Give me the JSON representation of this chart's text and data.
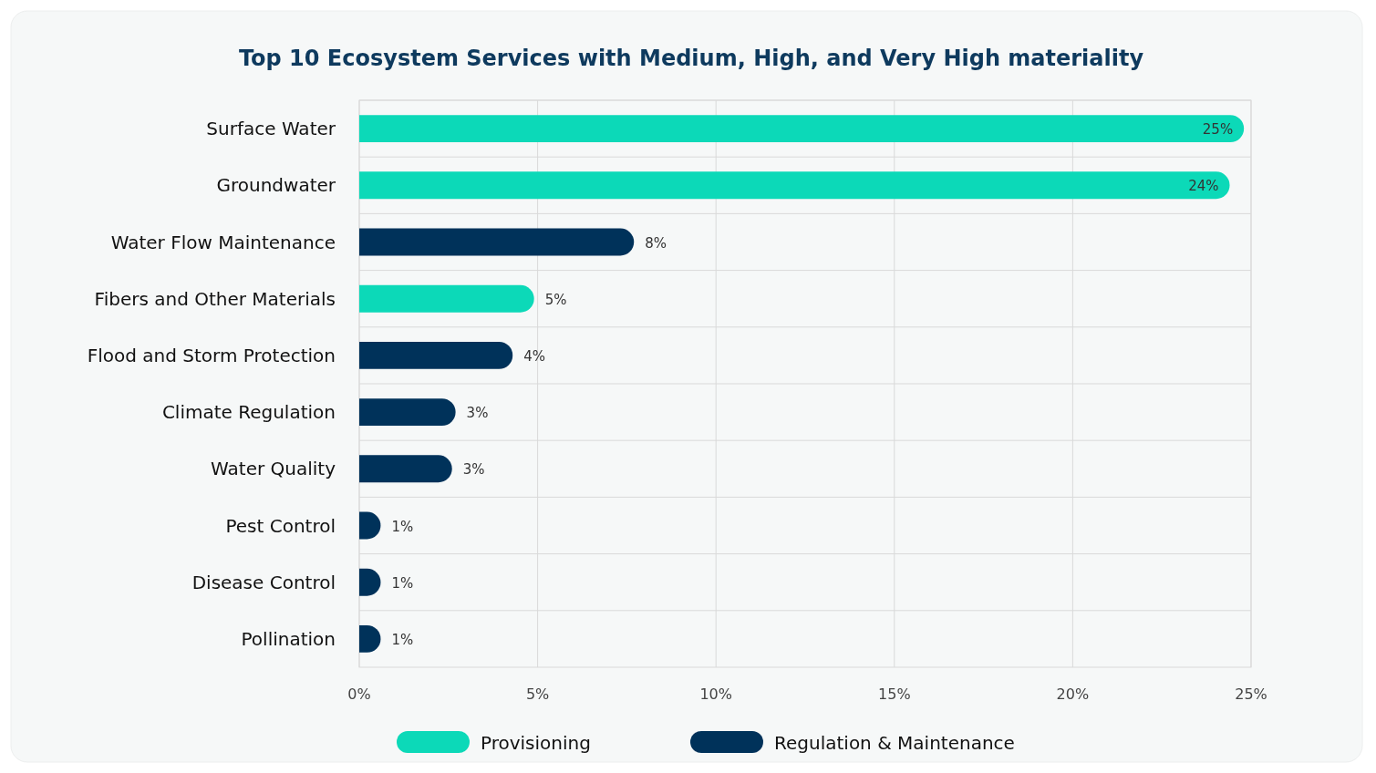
{
  "chart_data": {
    "type": "bar",
    "orientation": "horizontal",
    "title": "Top 10 Ecosystem Services with Medium, High, and Very High materiality",
    "categories": [
      "Surface Water",
      "Groundwater",
      "Water Flow Maintenance",
      "Fibers and Other Materials",
      "Flood and Storm Protection",
      "Climate Regulation",
      "Water Quality",
      "Pest Control",
      "Disease Control",
      "Pollination"
    ],
    "series": [
      {
        "name": "Provisioning",
        "color": "#0cd9b8",
        "values": [
          24.8,
          24.4,
          null,
          4.9,
          null,
          null,
          null,
          null,
          null,
          null
        ],
        "value_labels": [
          "25%",
          "24%",
          null,
          "5%",
          null,
          null,
          null,
          null,
          null,
          null
        ]
      },
      {
        "name": "Regulation & Maintenance",
        "color": "#00325a",
        "values": [
          null,
          null,
          7.7,
          null,
          4.3,
          2.7,
          2.6,
          0.6,
          0.6,
          0.6
        ],
        "value_labels": [
          null,
          null,
          "8%",
          null,
          "4%",
          "3%",
          "3%",
          "1%",
          "1%",
          "1%"
        ]
      }
    ],
    "xlim": [
      0,
      25
    ],
    "xticks": [
      {
        "value": 0,
        "label": "0%"
      },
      {
        "value": 5,
        "label": "5%"
      },
      {
        "value": 10,
        "label": "10%"
      },
      {
        "value": 15,
        "label": "15%"
      },
      {
        "value": 20,
        "label": "20%"
      },
      {
        "value": 25,
        "label": "25%"
      }
    ],
    "grid": true,
    "legend": "bottom"
  }
}
